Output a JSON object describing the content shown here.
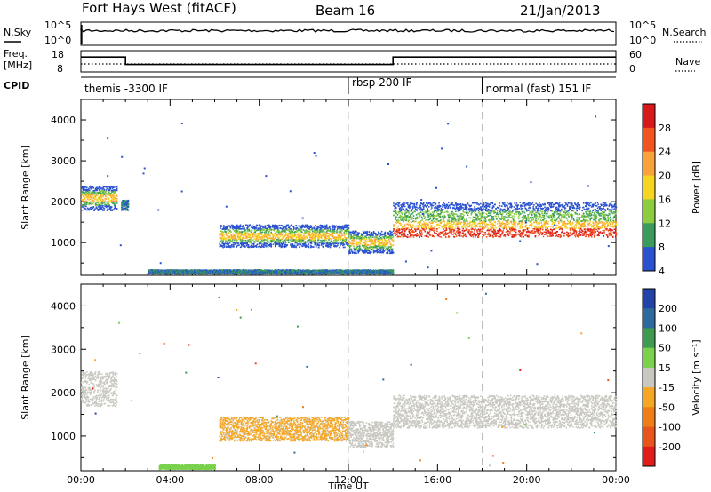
{
  "header": {
    "radar": "Fort Hays West (fitACF)",
    "beam": "Beam 16",
    "date": "21/Jan/2013"
  },
  "top_panels": {
    "nsky_label": "N.Sky",
    "nsky_ticks": [
      "10^5",
      "10^0"
    ],
    "nsearch_label": "N.Search",
    "nsearch_ticks": [
      "10^5",
      "10^0"
    ],
    "freq_label": "Freq.",
    "freq_unit": "[MHz]",
    "freq_ticks": [
      "18",
      "8"
    ],
    "nave_label": "Nave",
    "nave_ticks": [
      "60",
      "0"
    ],
    "cpid_label": "CPID",
    "cpid_segments": [
      {
        "label": "themis -3300 IF",
        "start_h": 0,
        "end_h": 12
      },
      {
        "label": "rbsp 200 IF",
        "start_h": 12,
        "end_h": 18
      },
      {
        "label": "normal (fast) 151 IF",
        "start_h": 18,
        "end_h": 24
      }
    ]
  },
  "chart_data": [
    {
      "type": "heatmap",
      "parameter": "power",
      "ylabel": "Slant Range [km]",
      "xlim_hours": [
        0,
        24
      ],
      "ylim_km": [
        200,
        4500
      ],
      "yticks": [
        1000,
        2000,
        3000,
        4000
      ],
      "colorbar": {
        "label": "Power [dB]",
        "ticks": [
          "28",
          "24",
          "20",
          "16",
          "12",
          "8",
          "4"
        ],
        "colors": [
          "#d7191c",
          "#f2541e",
          "#f9a23a",
          "#f5d51f",
          "#8ccc3f",
          "#3a9c5c",
          "#2a52d0"
        ]
      },
      "regions": [
        {
          "t": [
            0.0,
            1.6
          ],
          "r": [
            1800,
            2400
          ],
          "level": "medium"
        },
        {
          "t": [
            1.8,
            2.1
          ],
          "r": [
            1800,
            2050
          ],
          "level": "weak"
        },
        {
          "t": [
            6.2,
            12.0
          ],
          "r": [
            900,
            1450
          ],
          "level": "medium"
        },
        {
          "t": [
            12.0,
            14.0
          ],
          "r": [
            750,
            1300
          ],
          "level": "medium"
        },
        {
          "t": [
            14.0,
            24.0
          ],
          "r": [
            1150,
            2000
          ],
          "level": "strong"
        },
        {
          "t": [
            3.0,
            14.0
          ],
          "r": [
            250,
            350
          ],
          "level": "weak"
        }
      ]
    },
    {
      "type": "heatmap",
      "parameter": "velocity",
      "ylabel": "Slant Range [km]",
      "xlabel": "Time UT",
      "xlim_hours": [
        0,
        24
      ],
      "ylim_km": [
        200,
        4500
      ],
      "yticks": [
        1000,
        2000,
        3000,
        4000
      ],
      "xticks": [
        "00:00",
        "04:00",
        "08:00",
        "12:00",
        "16:00",
        "20:00",
        "00:00"
      ],
      "colorbar": {
        "label": "Velocity [m s⁻¹]",
        "ticks": [
          "200",
          "100",
          "50",
          "15",
          "-15",
          "-50",
          "-100",
          "-200"
        ],
        "colors": [
          "#2443a8",
          "#2f6a9f",
          "#3f9b4f",
          "#7ad14c",
          "#c9c8c0",
          "#f5a623",
          "#f07d16",
          "#e8551b",
          "#e21b1b"
        ]
      },
      "regions": [
        {
          "t": [
            0.0,
            1.6
          ],
          "r": [
            1700,
            2500
          ],
          "level": "ground-scatter"
        },
        {
          "t": [
            6.2,
            12.0
          ],
          "r": [
            900,
            1450
          ],
          "level": "-15 to -50"
        },
        {
          "t": [
            12.0,
            14.0
          ],
          "r": [
            750,
            1350
          ],
          "level": "ground-scatter"
        },
        {
          "t": [
            14.0,
            24.0
          ],
          "r": [
            1200,
            1950
          ],
          "level": "ground-scatter"
        },
        {
          "t": [
            3.5,
            6.0
          ],
          "r": [
            250,
            350
          ],
          "level": "15 to 50"
        }
      ]
    }
  ]
}
